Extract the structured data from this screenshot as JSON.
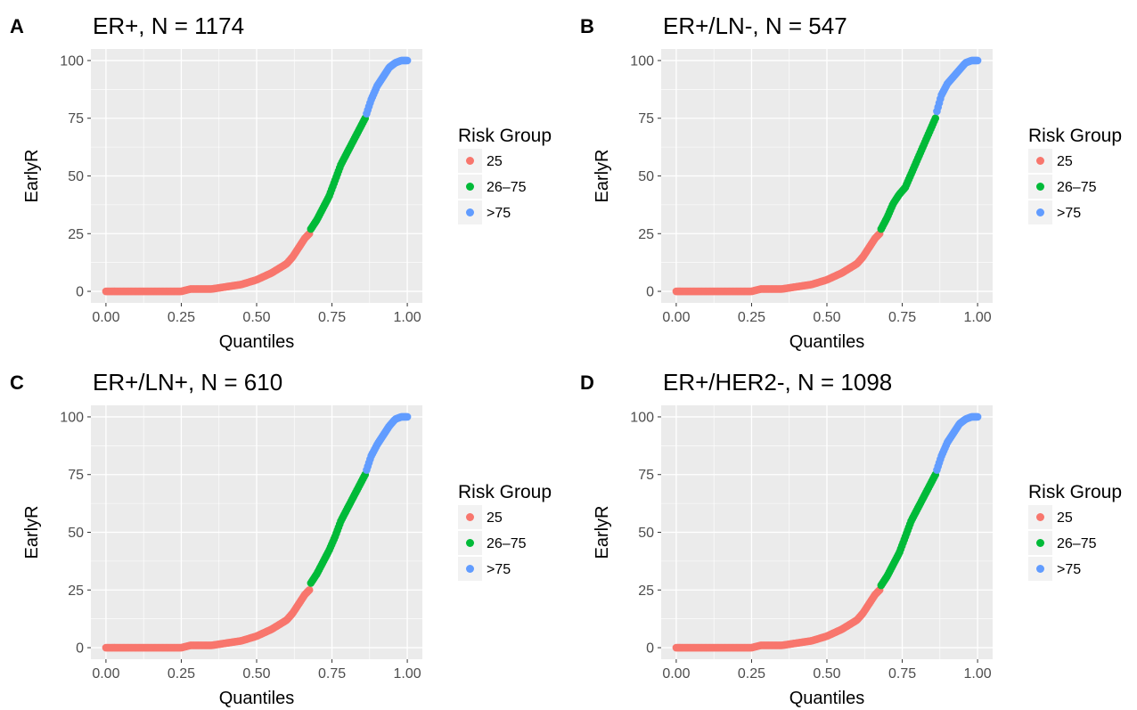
{
  "chart_data": [
    {
      "panel_label": "A",
      "type": "scatter",
      "title": "ER+, N = 1174",
      "xlabel": "Quantiles",
      "ylabel": "EarlyR",
      "xlim": [
        0,
        1
      ],
      "ylim": [
        0,
        100
      ],
      "x_ticks": [
        "0.00",
        "0.25",
        "0.50",
        "0.75",
        "1.00"
      ],
      "y_ticks": [
        "0",
        "25",
        "50",
        "75",
        "100"
      ],
      "grid": true,
      "legend": {
        "title": "Risk Group",
        "position": "right",
        "entries": [
          "25",
          "26–75",
          ">75"
        ]
      },
      "series": [
        {
          "name": "25",
          "color": "#F8766D",
          "x": [
            0.0,
            0.05,
            0.1,
            0.15,
            0.2,
            0.25,
            0.28,
            0.3,
            0.35,
            0.4,
            0.45,
            0.5,
            0.55,
            0.6,
            0.62,
            0.64,
            0.66,
            0.675
          ],
          "y": [
            0,
            0,
            0,
            0,
            0,
            0,
            1,
            1,
            1,
            2,
            3,
            5,
            8,
            12,
            15,
            19,
            23,
            25
          ]
        },
        {
          "name": "26–75",
          "color": "#00BA38",
          "x": [
            0.68,
            0.7,
            0.72,
            0.74,
            0.76,
            0.78,
            0.8,
            0.82,
            0.84,
            0.86
          ],
          "y": [
            27,
            31,
            36,
            41,
            48,
            55,
            60,
            65,
            70,
            75
          ]
        },
        {
          "name": ">75",
          "color": "#619CFF",
          "x": [
            0.865,
            0.88,
            0.9,
            0.92,
            0.94,
            0.96,
            0.98,
            1.0
          ],
          "y": [
            77,
            83,
            89,
            93,
            97,
            99,
            100,
            100
          ]
        }
      ]
    },
    {
      "panel_label": "B",
      "type": "scatter",
      "title": "ER+/LN-, N = 547",
      "xlabel": "Quantiles",
      "ylabel": "EarlyR",
      "xlim": [
        0,
        1
      ],
      "ylim": [
        0,
        100
      ],
      "x_ticks": [
        "0.00",
        "0.25",
        "0.50",
        "0.75",
        "1.00"
      ],
      "y_ticks": [
        "0",
        "25",
        "50",
        "75",
        "100"
      ],
      "grid": true,
      "legend": {
        "title": "Risk Group",
        "position": "right",
        "entries": [
          "25",
          "26–75",
          ">75"
        ]
      },
      "series": [
        {
          "name": "25",
          "color": "#F8766D",
          "x": [
            0.0,
            0.05,
            0.1,
            0.15,
            0.2,
            0.25,
            0.28,
            0.3,
            0.35,
            0.4,
            0.45,
            0.5,
            0.55,
            0.6,
            0.62,
            0.64,
            0.66,
            0.675
          ],
          "y": [
            0,
            0,
            0,
            0,
            0,
            0,
            1,
            1,
            1,
            2,
            3,
            5,
            8,
            12,
            15,
            19,
            23,
            25
          ]
        },
        {
          "name": "26–75",
          "color": "#00BA38",
          "x": [
            0.68,
            0.7,
            0.72,
            0.74,
            0.76,
            0.78,
            0.8,
            0.82,
            0.84,
            0.86
          ],
          "y": [
            27,
            32,
            38,
            42,
            45,
            51,
            57,
            63,
            69,
            75
          ]
        },
        {
          "name": ">75",
          "color": "#619CFF",
          "x": [
            0.865,
            0.88,
            0.9,
            0.92,
            0.94,
            0.96,
            0.98,
            1.0
          ],
          "y": [
            78,
            85,
            90,
            93,
            96,
            99,
            100,
            100
          ]
        }
      ]
    },
    {
      "panel_label": "C",
      "type": "scatter",
      "title": "ER+/LN+, N = 610",
      "xlabel": "Quantiles",
      "ylabel": "EarlyR",
      "xlim": [
        0,
        1
      ],
      "ylim": [
        0,
        100
      ],
      "x_ticks": [
        "0.00",
        "0.25",
        "0.50",
        "0.75",
        "1.00"
      ],
      "y_ticks": [
        "0",
        "25",
        "50",
        "75",
        "100"
      ],
      "grid": true,
      "legend": {
        "title": "Risk Group",
        "position": "right",
        "entries": [
          "25",
          "26–75",
          ">75"
        ]
      },
      "series": [
        {
          "name": "25",
          "color": "#F8766D",
          "x": [
            0.0,
            0.05,
            0.1,
            0.15,
            0.2,
            0.25,
            0.28,
            0.3,
            0.35,
            0.4,
            0.45,
            0.5,
            0.55,
            0.6,
            0.62,
            0.64,
            0.66,
            0.675
          ],
          "y": [
            0,
            0,
            0,
            0,
            0,
            0,
            1,
            1,
            1,
            2,
            3,
            5,
            8,
            12,
            15,
            19,
            23,
            25
          ]
        },
        {
          "name": "26–75",
          "color": "#00BA38",
          "x": [
            0.68,
            0.7,
            0.72,
            0.74,
            0.76,
            0.78,
            0.8,
            0.82,
            0.84,
            0.86
          ],
          "y": [
            28,
            32,
            37,
            42,
            48,
            55,
            60,
            65,
            70,
            75
          ]
        },
        {
          "name": ">75",
          "color": "#619CFF",
          "x": [
            0.865,
            0.88,
            0.9,
            0.92,
            0.94,
            0.96,
            0.98,
            1.0
          ],
          "y": [
            77,
            83,
            88,
            92,
            96,
            99,
            100,
            100
          ]
        }
      ]
    },
    {
      "panel_label": "D",
      "type": "scatter",
      "title": "ER+/HER2-, N = 1098",
      "xlabel": "Quantiles",
      "ylabel": "EarlyR",
      "xlim": [
        0,
        1
      ],
      "ylim": [
        0,
        100
      ],
      "x_ticks": [
        "0.00",
        "0.25",
        "0.50",
        "0.75",
        "1.00"
      ],
      "y_ticks": [
        "0",
        "25",
        "50",
        "75",
        "100"
      ],
      "grid": true,
      "legend": {
        "title": "Risk Group",
        "position": "right",
        "entries": [
          "25",
          "26–75",
          ">75"
        ]
      },
      "series": [
        {
          "name": "25",
          "color": "#F8766D",
          "x": [
            0.0,
            0.05,
            0.1,
            0.15,
            0.2,
            0.25,
            0.28,
            0.3,
            0.35,
            0.4,
            0.45,
            0.5,
            0.55,
            0.6,
            0.62,
            0.64,
            0.66,
            0.675
          ],
          "y": [
            0,
            0,
            0,
            0,
            0,
            0,
            1,
            1,
            1,
            2,
            3,
            5,
            8,
            12,
            15,
            19,
            23,
            25
          ]
        },
        {
          "name": "26–75",
          "color": "#00BA38",
          "x": [
            0.68,
            0.7,
            0.72,
            0.74,
            0.76,
            0.78,
            0.8,
            0.82,
            0.84,
            0.86
          ],
          "y": [
            27,
            31,
            36,
            41,
            48,
            55,
            60,
            65,
            70,
            75
          ]
        },
        {
          "name": ">75",
          "color": "#619CFF",
          "x": [
            0.865,
            0.88,
            0.9,
            0.92,
            0.94,
            0.96,
            0.98,
            1.0
          ],
          "y": [
            77,
            83,
            89,
            93,
            97,
            99,
            100,
            100
          ]
        }
      ]
    }
  ]
}
